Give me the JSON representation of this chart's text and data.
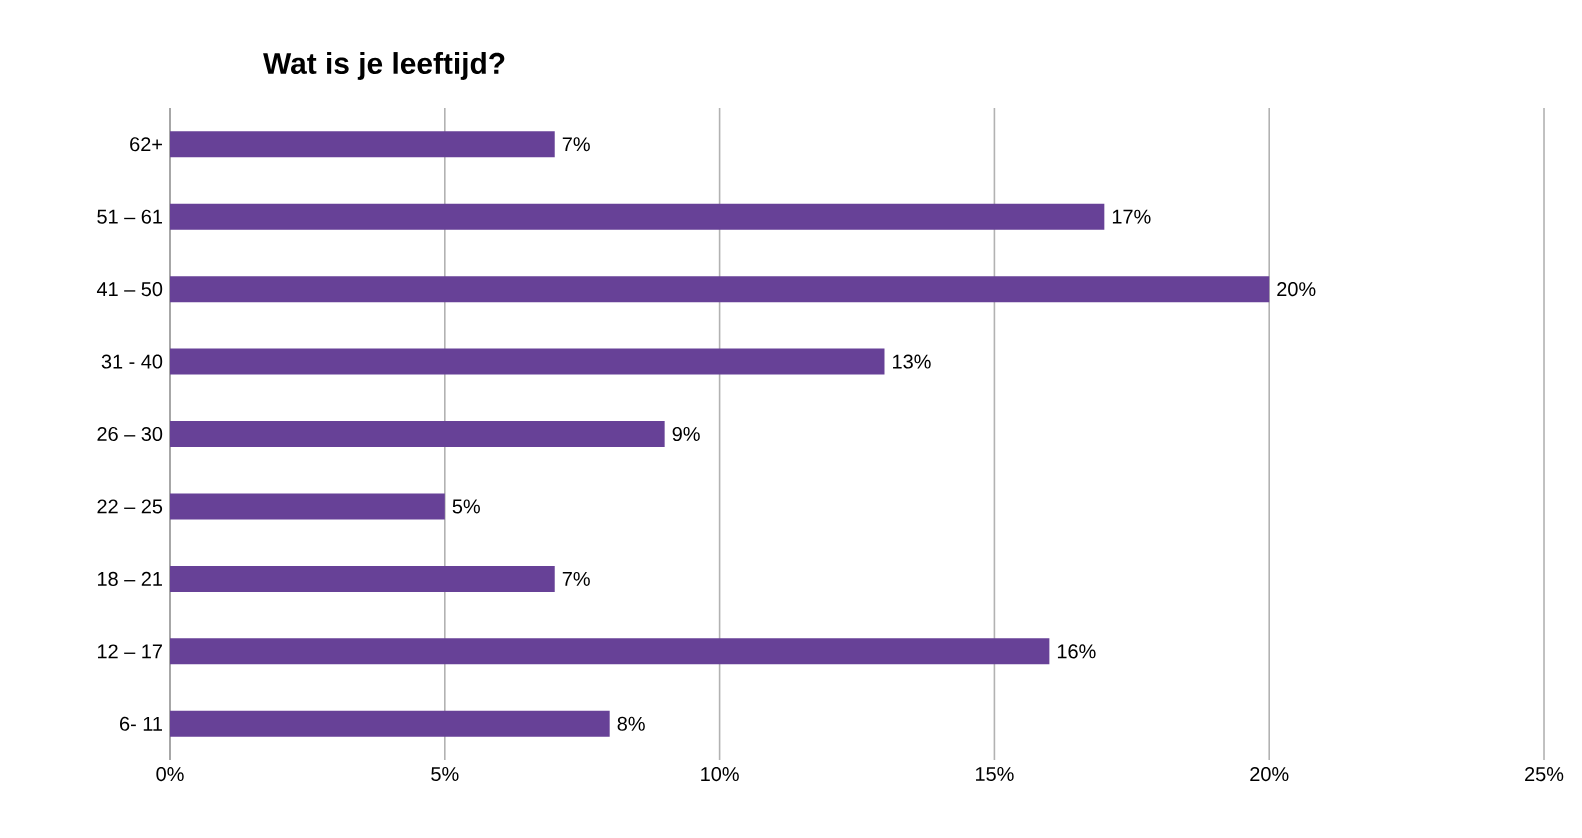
{
  "chart_data": {
    "type": "bar",
    "orientation": "horizontal",
    "title": "Wat is je leeftijd?",
    "categories": [
      "62+",
      "51 – 61",
      "41 – 50",
      "31 - 40",
      "26 – 30",
      "22 – 25",
      "18 – 21",
      "12 – 17",
      "6- 11"
    ],
    "values": [
      7,
      17,
      20,
      13,
      9,
      5,
      7,
      16,
      8
    ],
    "value_labels": [
      "7%",
      "17%",
      "20%",
      "13%",
      "9%",
      "5%",
      "7%",
      "16%",
      "8%"
    ],
    "color": "#674197",
    "xlim": [
      0,
      25
    ],
    "xticks": [
      {
        "value": 0,
        "label": "0%"
      },
      {
        "value": 5,
        "label": "5%"
      },
      {
        "value": 10,
        "label": "10%"
      },
      {
        "value": 15,
        "label": "15%"
      },
      {
        "value": 20,
        "label": "20%"
      },
      {
        "value": 25,
        "label": "25%"
      }
    ],
    "grid": "x"
  }
}
